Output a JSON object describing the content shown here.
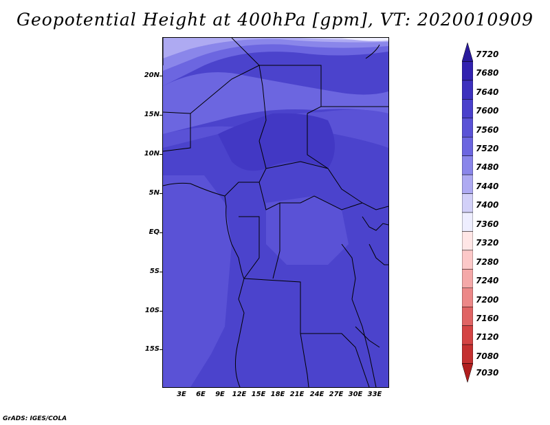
{
  "title": "Geopotential Height at 400hPa [gpm], VT: 2020010909",
  "credit": "GrADS: IGES/COLA",
  "map": {
    "lat_labels": [
      "20N",
      "15N",
      "10N",
      "5N",
      "EQ",
      "5S",
      "10S",
      "15S"
    ],
    "lon_labels": [
      "3E",
      "6E",
      "9E",
      "12E",
      "15E",
      "18E",
      "21E",
      "24E",
      "27E",
      "30E",
      "33E"
    ]
  },
  "colorbar": {
    "labels": [
      "7720",
      "7680",
      "7640",
      "7600",
      "7560",
      "7520",
      "7480",
      "7440",
      "7400",
      "7360",
      "7320",
      "7280",
      "7240",
      "7200",
      "7160",
      "7120",
      "7080",
      "7030"
    ],
    "colors": [
      "#2a1a9c",
      "#3222b0",
      "#3d31be",
      "#4a40cc",
      "#5a52d6",
      "#6c66e0",
      "#8a86ea",
      "#aeaaf2",
      "#d2d0f8",
      "#eeeeff",
      "#ffe6e6",
      "#fcc8c8",
      "#f4a8a8",
      "#ec8888",
      "#e06464",
      "#d44444",
      "#c43030",
      "#b01e1e"
    ]
  }
}
